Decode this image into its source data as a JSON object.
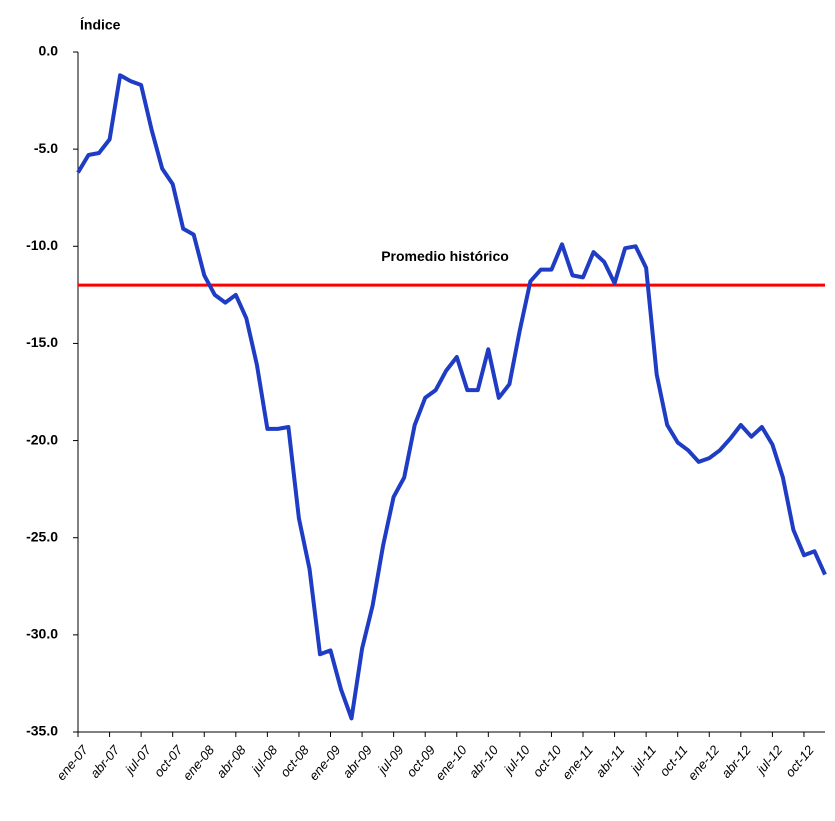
{
  "chart_data": {
    "type": "line",
    "y_axis_label": "Índice",
    "categories": [
      "ene-07",
      null,
      null,
      "abr-07",
      null,
      null,
      "jul-07",
      null,
      null,
      "oct-07",
      null,
      null,
      "ene-08",
      null,
      null,
      "abr-08",
      null,
      null,
      "jul-08",
      null,
      null,
      "oct-08",
      null,
      null,
      "ene-09",
      null,
      null,
      "abr-09",
      null,
      null,
      "jul-09",
      null,
      null,
      "oct-09",
      null,
      null,
      "ene-10",
      null,
      null,
      "abr-10",
      null,
      null,
      "jul-10",
      null,
      null,
      "oct-10",
      null,
      null,
      "ene-11",
      null,
      null,
      "abr-11",
      null,
      null,
      "jul-11",
      null,
      null,
      "oct-11",
      null,
      null,
      "ene-12",
      null,
      null,
      "abr-12",
      null,
      null,
      "jul-12",
      null,
      null,
      "oct-12",
      null,
      null
    ],
    "values": [
      -6.2,
      -5.3,
      -5.2,
      -4.5,
      -1.2,
      -1.5,
      -1.7,
      -4.0,
      -6.0,
      -6.8,
      -9.1,
      -9.4,
      -11.5,
      -12.5,
      -12.9,
      -12.5,
      -13.7,
      -16.1,
      -19.4,
      -19.4,
      -19.3,
      -24.0,
      -26.6,
      -31.0,
      -30.8,
      -32.8,
      -34.3,
      -30.7,
      -28.5,
      -25.4,
      -22.9,
      -21.9,
      -19.2,
      -17.8,
      -17.4,
      -16.4,
      -15.7,
      -17.4,
      -17.4,
      -15.3,
      -17.8,
      -17.1,
      -14.3,
      -11.8,
      -11.2,
      -11.2,
      -9.9,
      -11.5,
      -11.6,
      -10.3,
      -10.8,
      -11.9,
      -10.1,
      -10.0,
      -11.1,
      -16.6,
      -19.2,
      -20.1,
      -20.5,
      -21.1,
      -20.9,
      -20.5,
      -19.9,
      -19.2,
      -19.8,
      -19.3,
      -20.2,
      -21.9,
      -24.6,
      -25.9,
      -25.7,
      -26.9
    ],
    "color": "#1f3cc4",
    "ylim": [
      -35,
      0
    ],
    "yticks": [
      {
        "value": -35,
        "label": "-35.0"
      },
      {
        "value": -30,
        "label": "-30.0"
      },
      {
        "value": -25,
        "label": "-25.0"
      },
      {
        "value": -20,
        "label": "-20.0"
      },
      {
        "value": -15,
        "label": "-15.0"
      },
      {
        "value": -10,
        "label": "-10.0"
      },
      {
        "value": -5,
        "label": "-5.0"
      },
      {
        "value": 0,
        "label": "0.0"
      }
    ],
    "reference_line": {
      "value": -12.0,
      "label": "Promedio histórico",
      "color": "#ff0000"
    }
  }
}
